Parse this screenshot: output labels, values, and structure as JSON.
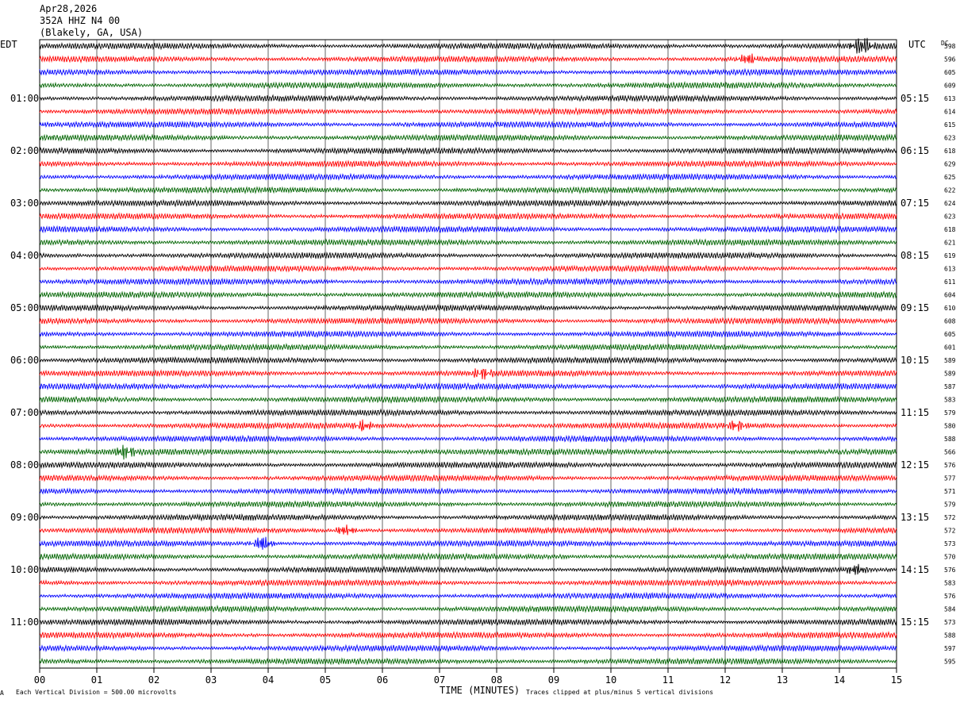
{
  "header": {
    "date": "Apr28,2026",
    "station": "352A HHZ N4 00",
    "location": "(Blakely, GA, USA)"
  },
  "left_axis_title": "EDT",
  "right_axis_title": "UTC",
  "dc_title": "DC",
  "footer": {
    "scale_mark": "A",
    "scale_note": "Each Vertical Division =  500.00 microvolts",
    "clip_note": "Traces clipped at plus/minus 5 vertical divisions"
  },
  "colors": {
    "trace_cycle": [
      "#000000",
      "#ff0000",
      "#0000ff",
      "#006400"
    ],
    "grid": "#000000"
  },
  "chart_data": {
    "type": "line",
    "title": "Apr28,2026 352A HHZ N4 00 (Blakely, GA, USA)",
    "xlabel": "TIME (MINUTES)",
    "xlim": [
      0,
      15
    ],
    "x_ticks": [
      "00",
      "01",
      "02",
      "03",
      "04",
      "05",
      "06",
      "07",
      "08",
      "09",
      "10",
      "11",
      "12",
      "13",
      "14",
      "15"
    ],
    "left_hour_labels": [
      "01:00",
      "02:00",
      "03:00",
      "04:00",
      "05:00",
      "06:00",
      "07:00",
      "08:00",
      "09:00",
      "10:00",
      "11:00"
    ],
    "right_hour_labels": [
      "05:15",
      "06:15",
      "07:15",
      "08:15",
      "09:15",
      "10:15",
      "11:15",
      "12:15",
      "13:15",
      "14:15",
      "15:15"
    ],
    "hour_label_every_n_traces": 4,
    "dc_offsets": [
      598,
      596,
      605,
      609,
      613,
      614,
      615,
      623,
      618,
      629,
      625,
      622,
      624,
      623,
      618,
      621,
      619,
      613,
      611,
      604,
      610,
      608,
      605,
      601,
      589,
      589,
      587,
      583,
      579,
      580,
      588,
      566,
      576,
      577,
      571,
      579,
      572,
      572,
      573,
      570,
      576,
      583,
      576,
      584,
      573,
      588,
      597,
      595
    ],
    "events": [
      {
        "trace": 0,
        "minute": 14.4,
        "amplitude": 1.0
      },
      {
        "trace": 1,
        "minute": 12.4,
        "amplitude": 0.6
      },
      {
        "trace": 25,
        "minute": 7.75,
        "amplitude": 0.5
      },
      {
        "trace": 29,
        "minute": 5.65,
        "amplitude": 0.5
      },
      {
        "trace": 29,
        "minute": 12.2,
        "amplitude": 0.55
      },
      {
        "trace": 31,
        "minute": 1.5,
        "amplitude": 0.7
      },
      {
        "trace": 37,
        "minute": 5.35,
        "amplitude": 0.6
      },
      {
        "trace": 38,
        "minute": 3.9,
        "amplitude": 0.8
      },
      {
        "trace": 40,
        "minute": 14.3,
        "amplitude": 0.6
      }
    ]
  }
}
